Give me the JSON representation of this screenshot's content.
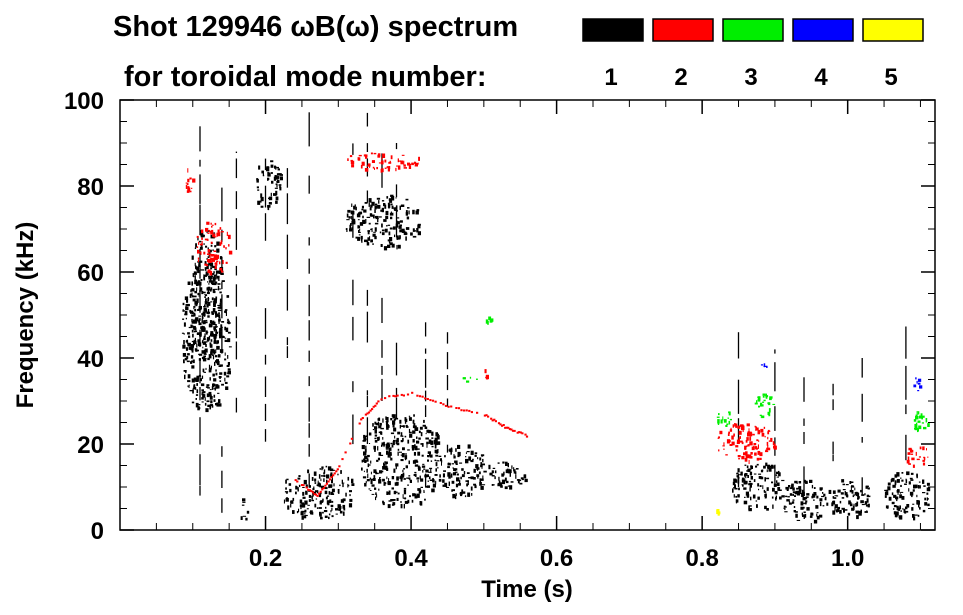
{
  "chart_data": {
    "type": "scatter",
    "title_line1": "Shot 129946 ωB(ω) spectrum",
    "title_line2": "for toroidal mode number:",
    "xlabel": "Time (s)",
    "ylabel": "Frequency (kHz)",
    "xlim": [
      0.0,
      1.12
    ],
    "ylim": [
      0,
      100
    ],
    "x_ticks": [
      0.2,
      0.4,
      0.6,
      0.8,
      1.0
    ],
    "x_tick_labels": [
      "0.2",
      "0.4",
      "0.6",
      "0.8",
      "1.0"
    ],
    "y_ticks": [
      0,
      20,
      40,
      60,
      80,
      100
    ],
    "y_tick_labels": [
      "0",
      "20",
      "40",
      "60",
      "80",
      "100"
    ],
    "legend_position": "top-right",
    "legend": [
      {
        "mode": "1",
        "color": "#000000"
      },
      {
        "mode": "2",
        "color": "#ff0000"
      },
      {
        "mode": "3",
        "color": "#00ee00"
      },
      {
        "mode": "4",
        "color": "#0000ff"
      },
      {
        "mode": "5",
        "color": "#ffff00"
      }
    ],
    "series": [
      {
        "name": "n=1",
        "color": "#000000",
        "blobs": [
          {
            "t0": 0.085,
            "t1": 0.15,
            "f0": 28,
            "f1": 62
          },
          {
            "t0": 0.095,
            "t1": 0.14,
            "f0": 40,
            "f1": 70
          },
          {
            "t0": 0.165,
            "t1": 0.175,
            "f0": 2,
            "f1": 8
          },
          {
            "t0": 0.185,
            "t1": 0.22,
            "f0": 75,
            "f1": 86
          },
          {
            "t0": 0.225,
            "t1": 0.32,
            "f0": 3,
            "f1": 15
          },
          {
            "t0": 0.31,
            "t1": 0.41,
            "f0": 66,
            "f1": 78
          },
          {
            "t0": 0.33,
            "t1": 0.44,
            "f0": 6,
            "f1": 27
          },
          {
            "t0": 0.44,
            "t1": 0.5,
            "f0": 8,
            "f1": 20
          },
          {
            "t0": 0.5,
            "t1": 0.56,
            "f0": 10,
            "f1": 16
          },
          {
            "t0": 0.84,
            "t1": 0.91,
            "f0": 5,
            "f1": 16
          },
          {
            "t0": 0.91,
            "t1": 0.97,
            "f0": 2,
            "f1": 12
          },
          {
            "t0": 0.97,
            "t1": 1.03,
            "f0": 3,
            "f1": 12
          },
          {
            "t0": 1.05,
            "t1": 1.11,
            "f0": 3,
            "f1": 14
          }
        ],
        "streaks": [
          {
            "t": 0.11,
            "f0": 8,
            "f1": 96
          },
          {
            "t": 0.14,
            "f0": 4,
            "f1": 80
          },
          {
            "t": 0.16,
            "f0": 20,
            "f1": 88
          },
          {
            "t": 0.2,
            "f0": 5,
            "f1": 94
          },
          {
            "t": 0.23,
            "f0": 40,
            "f1": 100
          },
          {
            "t": 0.26,
            "f0": 10,
            "f1": 98
          },
          {
            "t": 0.32,
            "f0": 10,
            "f1": 90
          },
          {
            "t": 0.34,
            "f0": 20,
            "f1": 97
          },
          {
            "t": 0.36,
            "f0": 30,
            "f1": 95
          },
          {
            "t": 0.38,
            "f0": 26,
            "f1": 90
          },
          {
            "t": 0.42,
            "f0": 10,
            "f1": 52
          },
          {
            "t": 0.45,
            "f0": 18,
            "f1": 46
          },
          {
            "t": 0.85,
            "f0": 10,
            "f1": 46
          },
          {
            "t": 0.9,
            "f0": 10,
            "f1": 42
          },
          {
            "t": 0.94,
            "f0": 8,
            "f1": 36
          },
          {
            "t": 0.98,
            "f0": 16,
            "f1": 34
          },
          {
            "t": 1.02,
            "f0": 8,
            "f1": 40
          },
          {
            "t": 1.08,
            "f0": 14,
            "f1": 50
          }
        ]
      },
      {
        "name": "n=2",
        "color": "#ff0000",
        "blobs": [
          {
            "t0": 0.105,
            "t1": 0.15,
            "f0": 60,
            "f1": 72
          },
          {
            "t0": 0.09,
            "t1": 0.1,
            "f0": 78,
            "f1": 85
          },
          {
            "t0": 0.31,
            "t1": 0.41,
            "f0": 84,
            "f1": 88
          },
          {
            "t0": 0.5,
            "t1": 0.51,
            "f0": 35,
            "f1": 38
          },
          {
            "t0": 0.82,
            "t1": 0.9,
            "f0": 16,
            "f1": 25
          },
          {
            "t0": 1.08,
            "t1": 1.11,
            "f0": 15,
            "f1": 20
          }
        ],
        "curve": [
          [
            0.24,
            12
          ],
          [
            0.27,
            8
          ],
          [
            0.3,
            15
          ],
          [
            0.33,
            26
          ],
          [
            0.36,
            31
          ],
          [
            0.4,
            32
          ],
          [
            0.45,
            29
          ],
          [
            0.5,
            27
          ],
          [
            0.53,
            24
          ],
          [
            0.56,
            22
          ]
        ]
      },
      {
        "name": "n=3",
        "color": "#00ee00",
        "blobs": [
          {
            "t0": 0.87,
            "t1": 0.9,
            "f0": 26,
            "f1": 32
          },
          {
            "t0": 0.82,
            "t1": 0.84,
            "f0": 24,
            "f1": 28
          },
          {
            "t0": 1.09,
            "t1": 1.11,
            "f0": 22,
            "f1": 28
          },
          {
            "t0": 0.5,
            "t1": 0.51,
            "f0": 48,
            "f1": 50
          },
          {
            "t0": 0.47,
            "t1": 0.49,
            "f0": 34,
            "f1": 36
          }
        ]
      },
      {
        "name": "n=4",
        "color": "#0000ff",
        "blobs": [
          {
            "t0": 0.88,
            "t1": 0.89,
            "f0": 38,
            "f1": 39
          },
          {
            "t0": 1.09,
            "t1": 1.1,
            "f0": 32,
            "f1": 36
          }
        ]
      },
      {
        "name": "n=5",
        "color": "#ffff00",
        "blobs": [
          {
            "t0": 0.818,
            "t1": 0.822,
            "f0": 4,
            "f1": 5
          }
        ]
      }
    ]
  }
}
